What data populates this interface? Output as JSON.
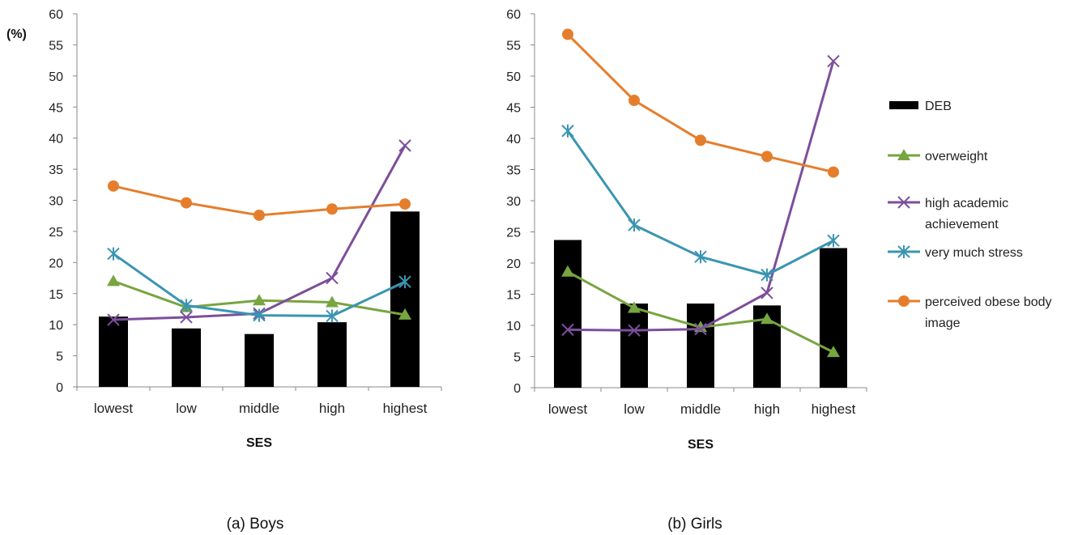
{
  "legend": {
    "items": [
      {
        "key": "DEB",
        "label": "DEB",
        "marker": "bar",
        "color": "#000000"
      },
      {
        "key": "overweight",
        "label": "overweight",
        "marker": "triangle",
        "color": "#77a540"
      },
      {
        "key": "academic",
        "label_lines": [
          "high academic",
          "achievement"
        ],
        "marker": "x",
        "color": "#7d4e9b"
      },
      {
        "key": "stress",
        "label": "very much stress",
        "marker": "asterisk",
        "color": "#3a95b2"
      },
      {
        "key": "obese",
        "label_lines": [
          "perceived obese body",
          "image"
        ],
        "marker": "circle",
        "color": "#e57e2c"
      }
    ]
  },
  "chart_data": [
    {
      "type": "bar",
      "caption": "(a) Boys",
      "ylabel": "(%)",
      "xlabel": "SES",
      "ylim": [
        0,
        60
      ],
      "yticks": [
        0,
        5,
        10,
        15,
        20,
        25,
        30,
        35,
        40,
        45,
        50,
        55,
        60
      ],
      "categories": [
        "lowest",
        "low",
        "middle",
        "high",
        "highest"
      ],
      "series": [
        {
          "name": "DEB",
          "kind": "bar",
          "values": [
            11.3,
            9.4,
            8.5,
            10.4,
            28.2
          ]
        },
        {
          "name": "overweight",
          "kind": "line",
          "values": [
            17.0,
            12.8,
            13.9,
            13.6,
            11.6
          ]
        },
        {
          "name": "high academic achievement",
          "kind": "line",
          "values": [
            10.8,
            11.2,
            11.8,
            17.5,
            38.8
          ]
        },
        {
          "name": "very much stress",
          "kind": "line",
          "values": [
            21.4,
            13.1,
            11.5,
            11.4,
            16.9
          ]
        },
        {
          "name": "perceived obese body image",
          "kind": "line",
          "values": [
            32.3,
            29.6,
            27.6,
            28.6,
            29.4
          ]
        }
      ]
    },
    {
      "type": "bar",
      "caption": "(b) Girls",
      "ylabel": "",
      "xlabel": "SES",
      "ylim": [
        0,
        60
      ],
      "yticks": [
        0,
        5,
        10,
        15,
        20,
        25,
        30,
        35,
        40,
        45,
        50,
        55,
        60
      ],
      "categories": [
        "lowest",
        "low",
        "middle",
        "high",
        "highest"
      ],
      "series": [
        {
          "name": "DEB",
          "kind": "bar",
          "values": [
            23.7,
            13.5,
            13.5,
            13.2,
            22.4
          ]
        },
        {
          "name": "overweight",
          "kind": "line",
          "values": [
            18.6,
            12.8,
            9.7,
            11.0,
            5.7
          ]
        },
        {
          "name": "high academic achievement",
          "kind": "line",
          "values": [
            9.3,
            9.2,
            9.4,
            15.2,
            52.4
          ]
        },
        {
          "name": "very much stress",
          "kind": "line",
          "values": [
            41.2,
            26.1,
            21.0,
            18.1,
            23.6
          ]
        },
        {
          "name": "perceived obese body image",
          "kind": "line",
          "values": [
            56.7,
            46.1,
            39.7,
            37.1,
            34.6
          ]
        }
      ]
    }
  ]
}
